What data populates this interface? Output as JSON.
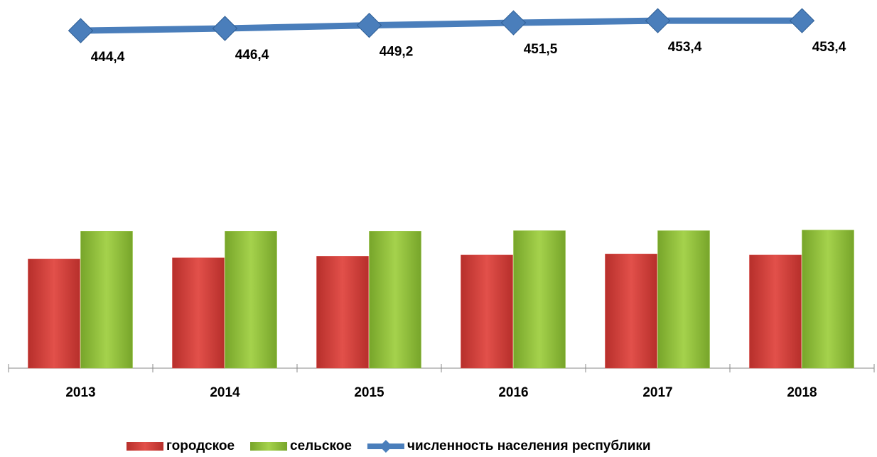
{
  "chart_data": {
    "type": "bar",
    "categories": [
      "2013",
      "2014",
      "2015",
      "2016",
      "2017",
      "2018"
    ],
    "ylim": [
      0,
      500
    ],
    "y2lim": [
      140,
      390
    ],
    "legend": "bottom",
    "series": [
      {
        "name": "городское",
        "color": "#d9413c",
        "values": [
          197,
          199,
          202,
          204,
          206,
          204
        ]
      },
      {
        "name": "сельское",
        "color": "#93c23c",
        "values": [
          247,
          247,
          247,
          248,
          248,
          249
        ]
      },
      {
        "name": "численность населения республики",
        "type": "line",
        "axis": "y2",
        "color": "#4a7ebb",
        "values": [
          444.4,
          446.4,
          449.2,
          451.5,
          453.4,
          453.4
        ],
        "value_labels": [
          "444,4",
          "446,4",
          "449,2",
          "451,5",
          "453,4",
          "453,4"
        ]
      }
    ]
  }
}
